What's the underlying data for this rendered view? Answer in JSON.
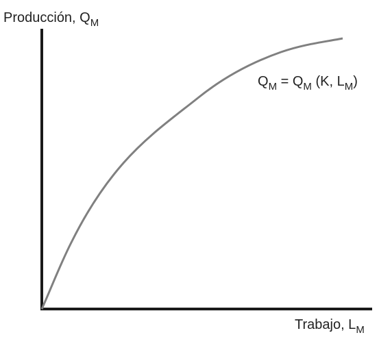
{
  "y_axis_label": {
    "text": "Producción, Q",
    "subscript": "M"
  },
  "x_axis_label": {
    "text": "Trabajo, L",
    "subscript": "M"
  },
  "curve_label": {
    "parts": [
      {
        "text": "Q",
        "subscript": "M"
      },
      {
        "text": " = Q",
        "subscript": "M"
      },
      {
        "text": " (K, L",
        "subscript": "M"
      },
      {
        "text": ")"
      }
    ]
  }
}
